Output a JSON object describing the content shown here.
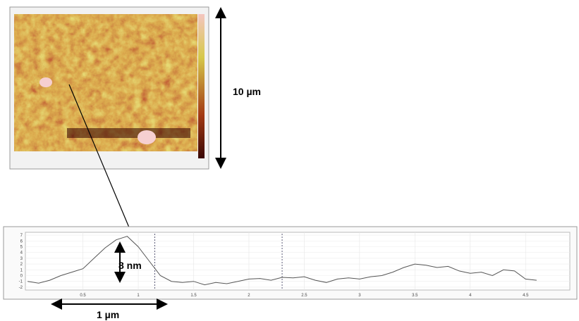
{
  "image": {
    "scale_label": "10 µm"
  },
  "chart_data": {
    "type": "line",
    "x": [
      0,
      0.1,
      0.2,
      0.3,
      0.4,
      0.5,
      0.6,
      0.7,
      0.8,
      0.9,
      1.0,
      1.1,
      1.2,
      1.3,
      1.4,
      1.5,
      1.6,
      1.7,
      1.8,
      1.9,
      2.0,
      2.1,
      2.2,
      2.3,
      2.4,
      2.5,
      2.6,
      2.7,
      2.8,
      2.9,
      3.0,
      3.1,
      3.2,
      3.3,
      3.4,
      3.5,
      3.6,
      3.7,
      3.8,
      3.9,
      4.0,
      4.1,
      4.2,
      4.3,
      4.4,
      4.5,
      4.6
    ],
    "values": [
      -1,
      -1.3,
      -0.8,
      0,
      0.6,
      1.2,
      3,
      4.8,
      6.2,
      6.8,
      5,
      2.5,
      0,
      -1,
      -1.2,
      -1,
      -1.6,
      -1.2,
      -1.4,
      -1,
      -0.6,
      -0.5,
      -0.8,
      -0.3,
      -0.4,
      -0.2,
      -0.8,
      -1.2,
      -0.6,
      -0.4,
      -0.6,
      -0.2,
      0,
      0.6,
      1.4,
      2,
      1.8,
      1.4,
      1.6,
      0.8,
      0.4,
      0.6,
      0,
      1,
      0.8,
      -0.6,
      -0.8
    ],
    "color": "#555555",
    "xlim": [
      -0.02,
      4.9
    ],
    "ylim": [
      -2.5,
      7.5
    ],
    "xticks": [
      0.5,
      1,
      1.5,
      2,
      2.5,
      3,
      3.5,
      4,
      4.5
    ],
    "yticks": [
      7,
      6,
      5,
      4,
      3,
      2,
      1,
      0,
      -1,
      -2
    ],
    "grid": true,
    "cursors": [
      1.15,
      2.3
    ],
    "annotations": [
      "8 nm",
      "1 µm"
    ]
  }
}
